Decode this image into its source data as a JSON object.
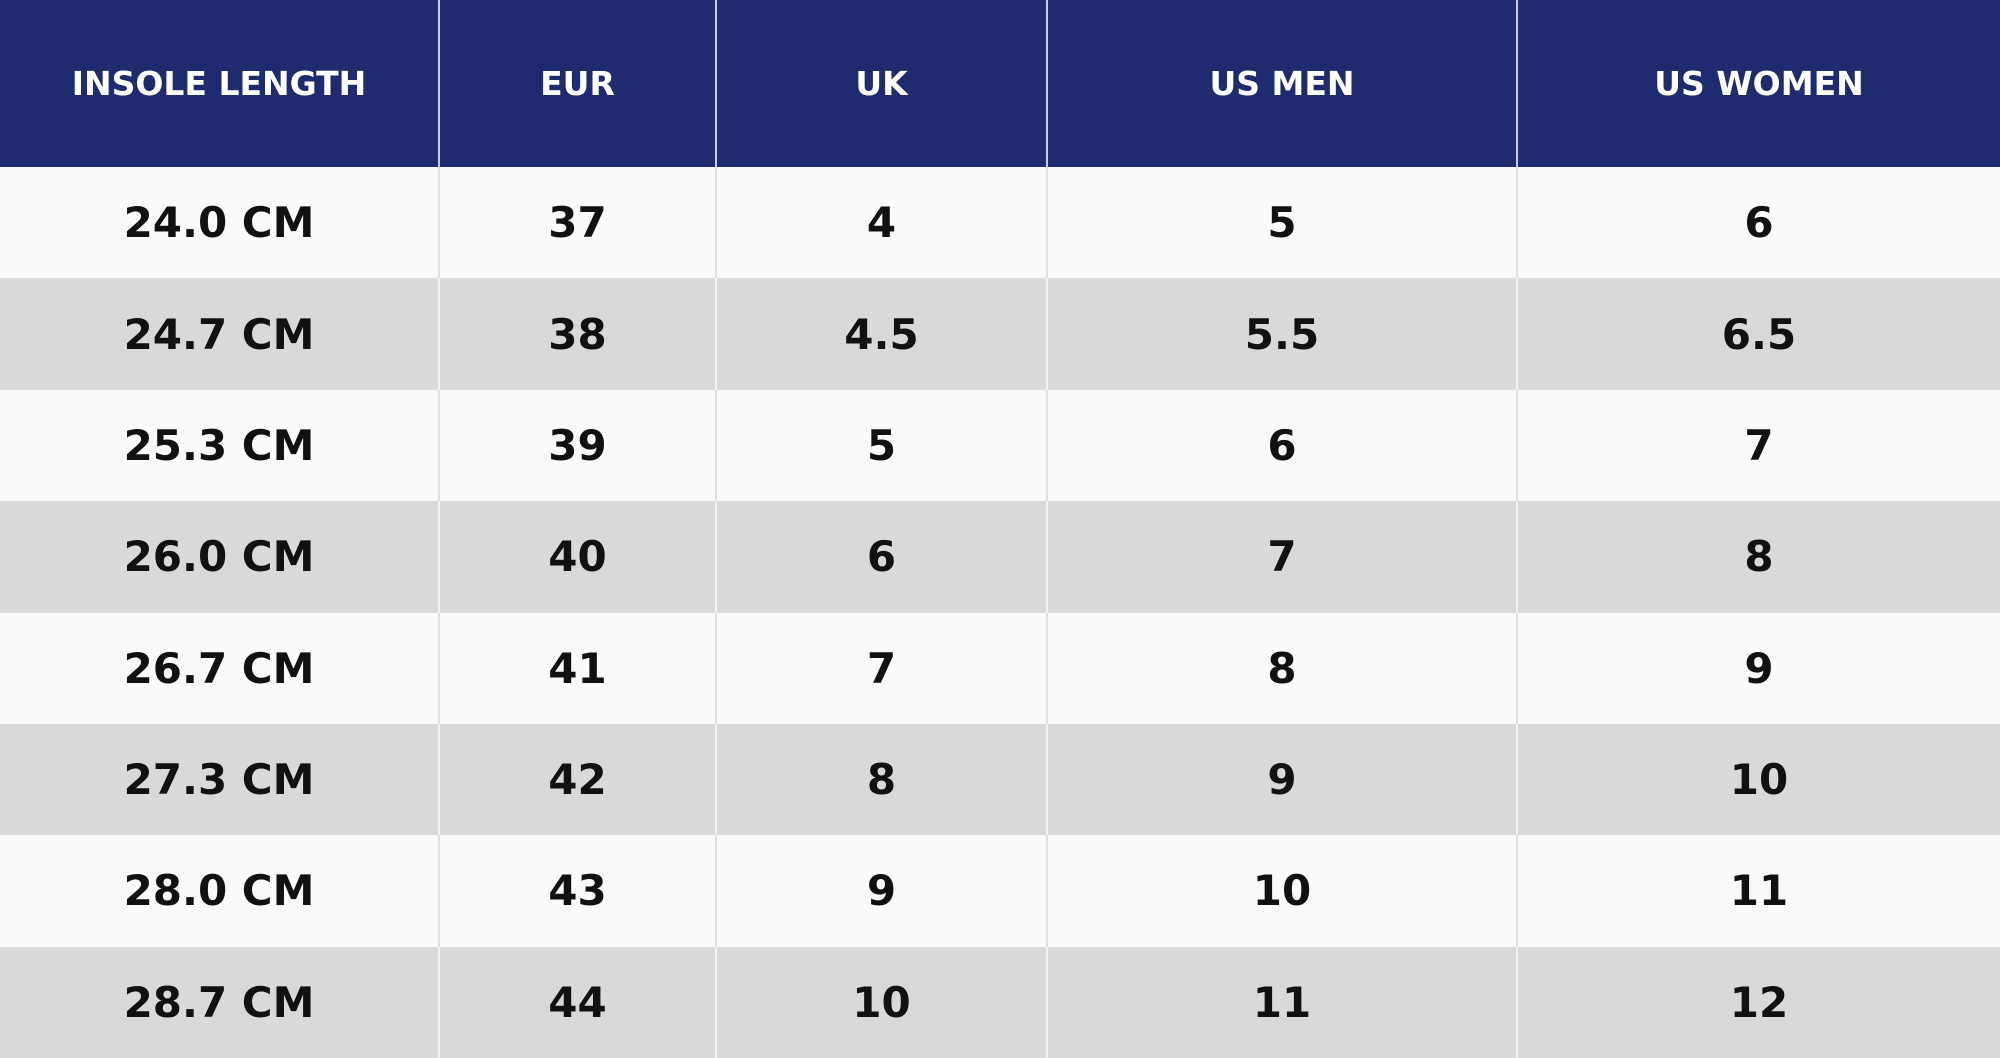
{
  "table": {
    "headers": [
      "INSOLE LENGTH",
      "EUR",
      "UK",
      "US MEN",
      "US WOMEN"
    ],
    "rows": [
      [
        "24.0 CM",
        "37",
        "4",
        "5",
        "6"
      ],
      [
        "24.7 CM",
        "38",
        "4.5",
        "5.5",
        "6.5"
      ],
      [
        "25.3 CM",
        "39",
        "5",
        "6",
        "7"
      ],
      [
        "26.0 CM",
        "40",
        "6",
        "7",
        "8"
      ],
      [
        "26.7 CM",
        "41",
        "7",
        "8",
        "9"
      ],
      [
        "27.3 CM",
        "42",
        "8",
        "9",
        "10"
      ],
      [
        "28.0 CM",
        "43",
        "9",
        "10",
        "11"
      ],
      [
        "28.7 CM",
        "44",
        "10",
        "11",
        "12"
      ]
    ]
  }
}
